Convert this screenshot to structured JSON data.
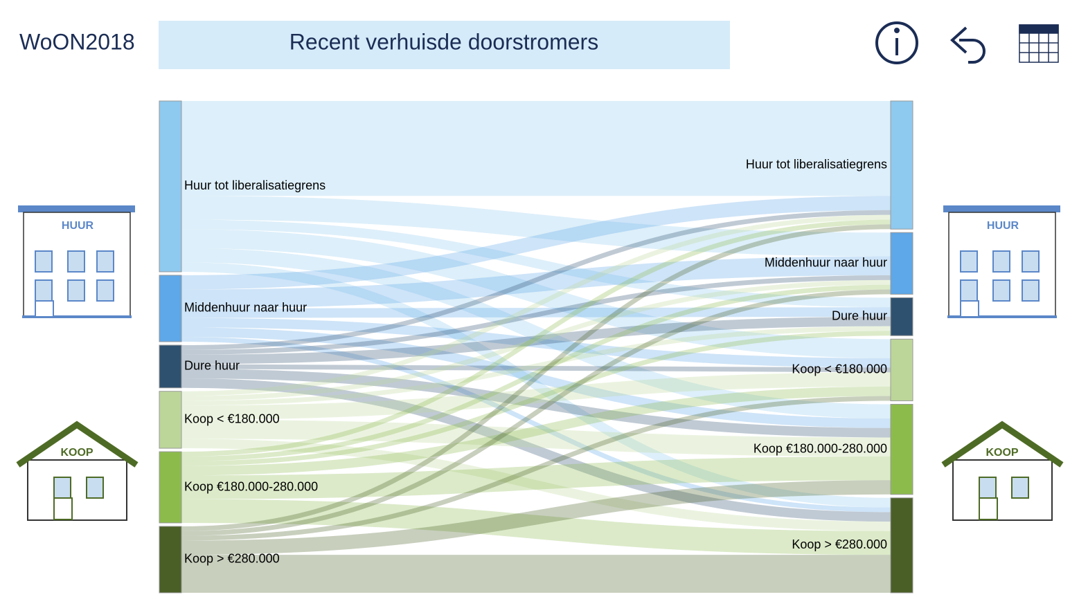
{
  "header": {
    "app": "WoON2018",
    "title": "Recent verhuisde doorstromers"
  },
  "icons": {
    "huur": "HUUR",
    "koop": "KOOP"
  },
  "chart_data": {
    "type": "sankey",
    "nodes": [
      {
        "label": "Huur tot liberalisatiegrens",
        "color": "#8ec9f0"
      },
      {
        "label": "Middenhuur naar huur",
        "color": "#5ea7e8"
      },
      {
        "label": "Dure huur",
        "color": "#2f5170"
      },
      {
        "label": "Koop < €180.000",
        "color": "#bcd699"
      },
      {
        "label": "Koop €180.000-280.000",
        "color": "#8cbb4c"
      },
      {
        "label": "Koop > €280.000",
        "color": "#4a5f26"
      }
    ],
    "links": [
      {
        "source": 0,
        "target": 0,
        "value": 20
      },
      {
        "source": 0,
        "target": 1,
        "value": 5
      },
      {
        "source": 0,
        "target": 2,
        "value": 2
      },
      {
        "source": 0,
        "target": 3,
        "value": 4
      },
      {
        "source": 0,
        "target": 4,
        "value": 3
      },
      {
        "source": 0,
        "target": 5,
        "value": 2
      },
      {
        "source": 1,
        "target": 0,
        "value": 3
      },
      {
        "source": 1,
        "target": 1,
        "value": 4
      },
      {
        "source": 1,
        "target": 2,
        "value": 2
      },
      {
        "source": 1,
        "target": 3,
        "value": 2
      },
      {
        "source": 1,
        "target": 4,
        "value": 2
      },
      {
        "source": 1,
        "target": 5,
        "value": 1
      },
      {
        "source": 2,
        "target": 0,
        "value": 1
      },
      {
        "source": 2,
        "target": 1,
        "value": 1
      },
      {
        "source": 2,
        "target": 2,
        "value": 2
      },
      {
        "source": 2,
        "target": 3,
        "value": 1
      },
      {
        "source": 2,
        "target": 4,
        "value": 2
      },
      {
        "source": 2,
        "target": 5,
        "value": 2
      },
      {
        "source": 3,
        "target": 0,
        "value": 1
      },
      {
        "source": 3,
        "target": 1,
        "value": 1
      },
      {
        "source": 3,
        "target": 2,
        "value": 1
      },
      {
        "source": 3,
        "target": 3,
        "value": 3
      },
      {
        "source": 3,
        "target": 4,
        "value": 4
      },
      {
        "source": 3,
        "target": 5,
        "value": 2
      },
      {
        "source": 4,
        "target": 0,
        "value": 1
      },
      {
        "source": 4,
        "target": 1,
        "value": 1
      },
      {
        "source": 4,
        "target": 2,
        "value": 1
      },
      {
        "source": 4,
        "target": 3,
        "value": 2
      },
      {
        "source": 4,
        "target": 4,
        "value": 5
      },
      {
        "source": 4,
        "target": 5,
        "value": 5
      },
      {
        "source": 5,
        "target": 0,
        "value": 1
      },
      {
        "source": 5,
        "target": 1,
        "value": 1
      },
      {
        "source": 5,
        "target": 3,
        "value": 1
      },
      {
        "source": 5,
        "target": 4,
        "value": 3
      },
      {
        "source": 5,
        "target": 5,
        "value": 8
      }
    ]
  }
}
